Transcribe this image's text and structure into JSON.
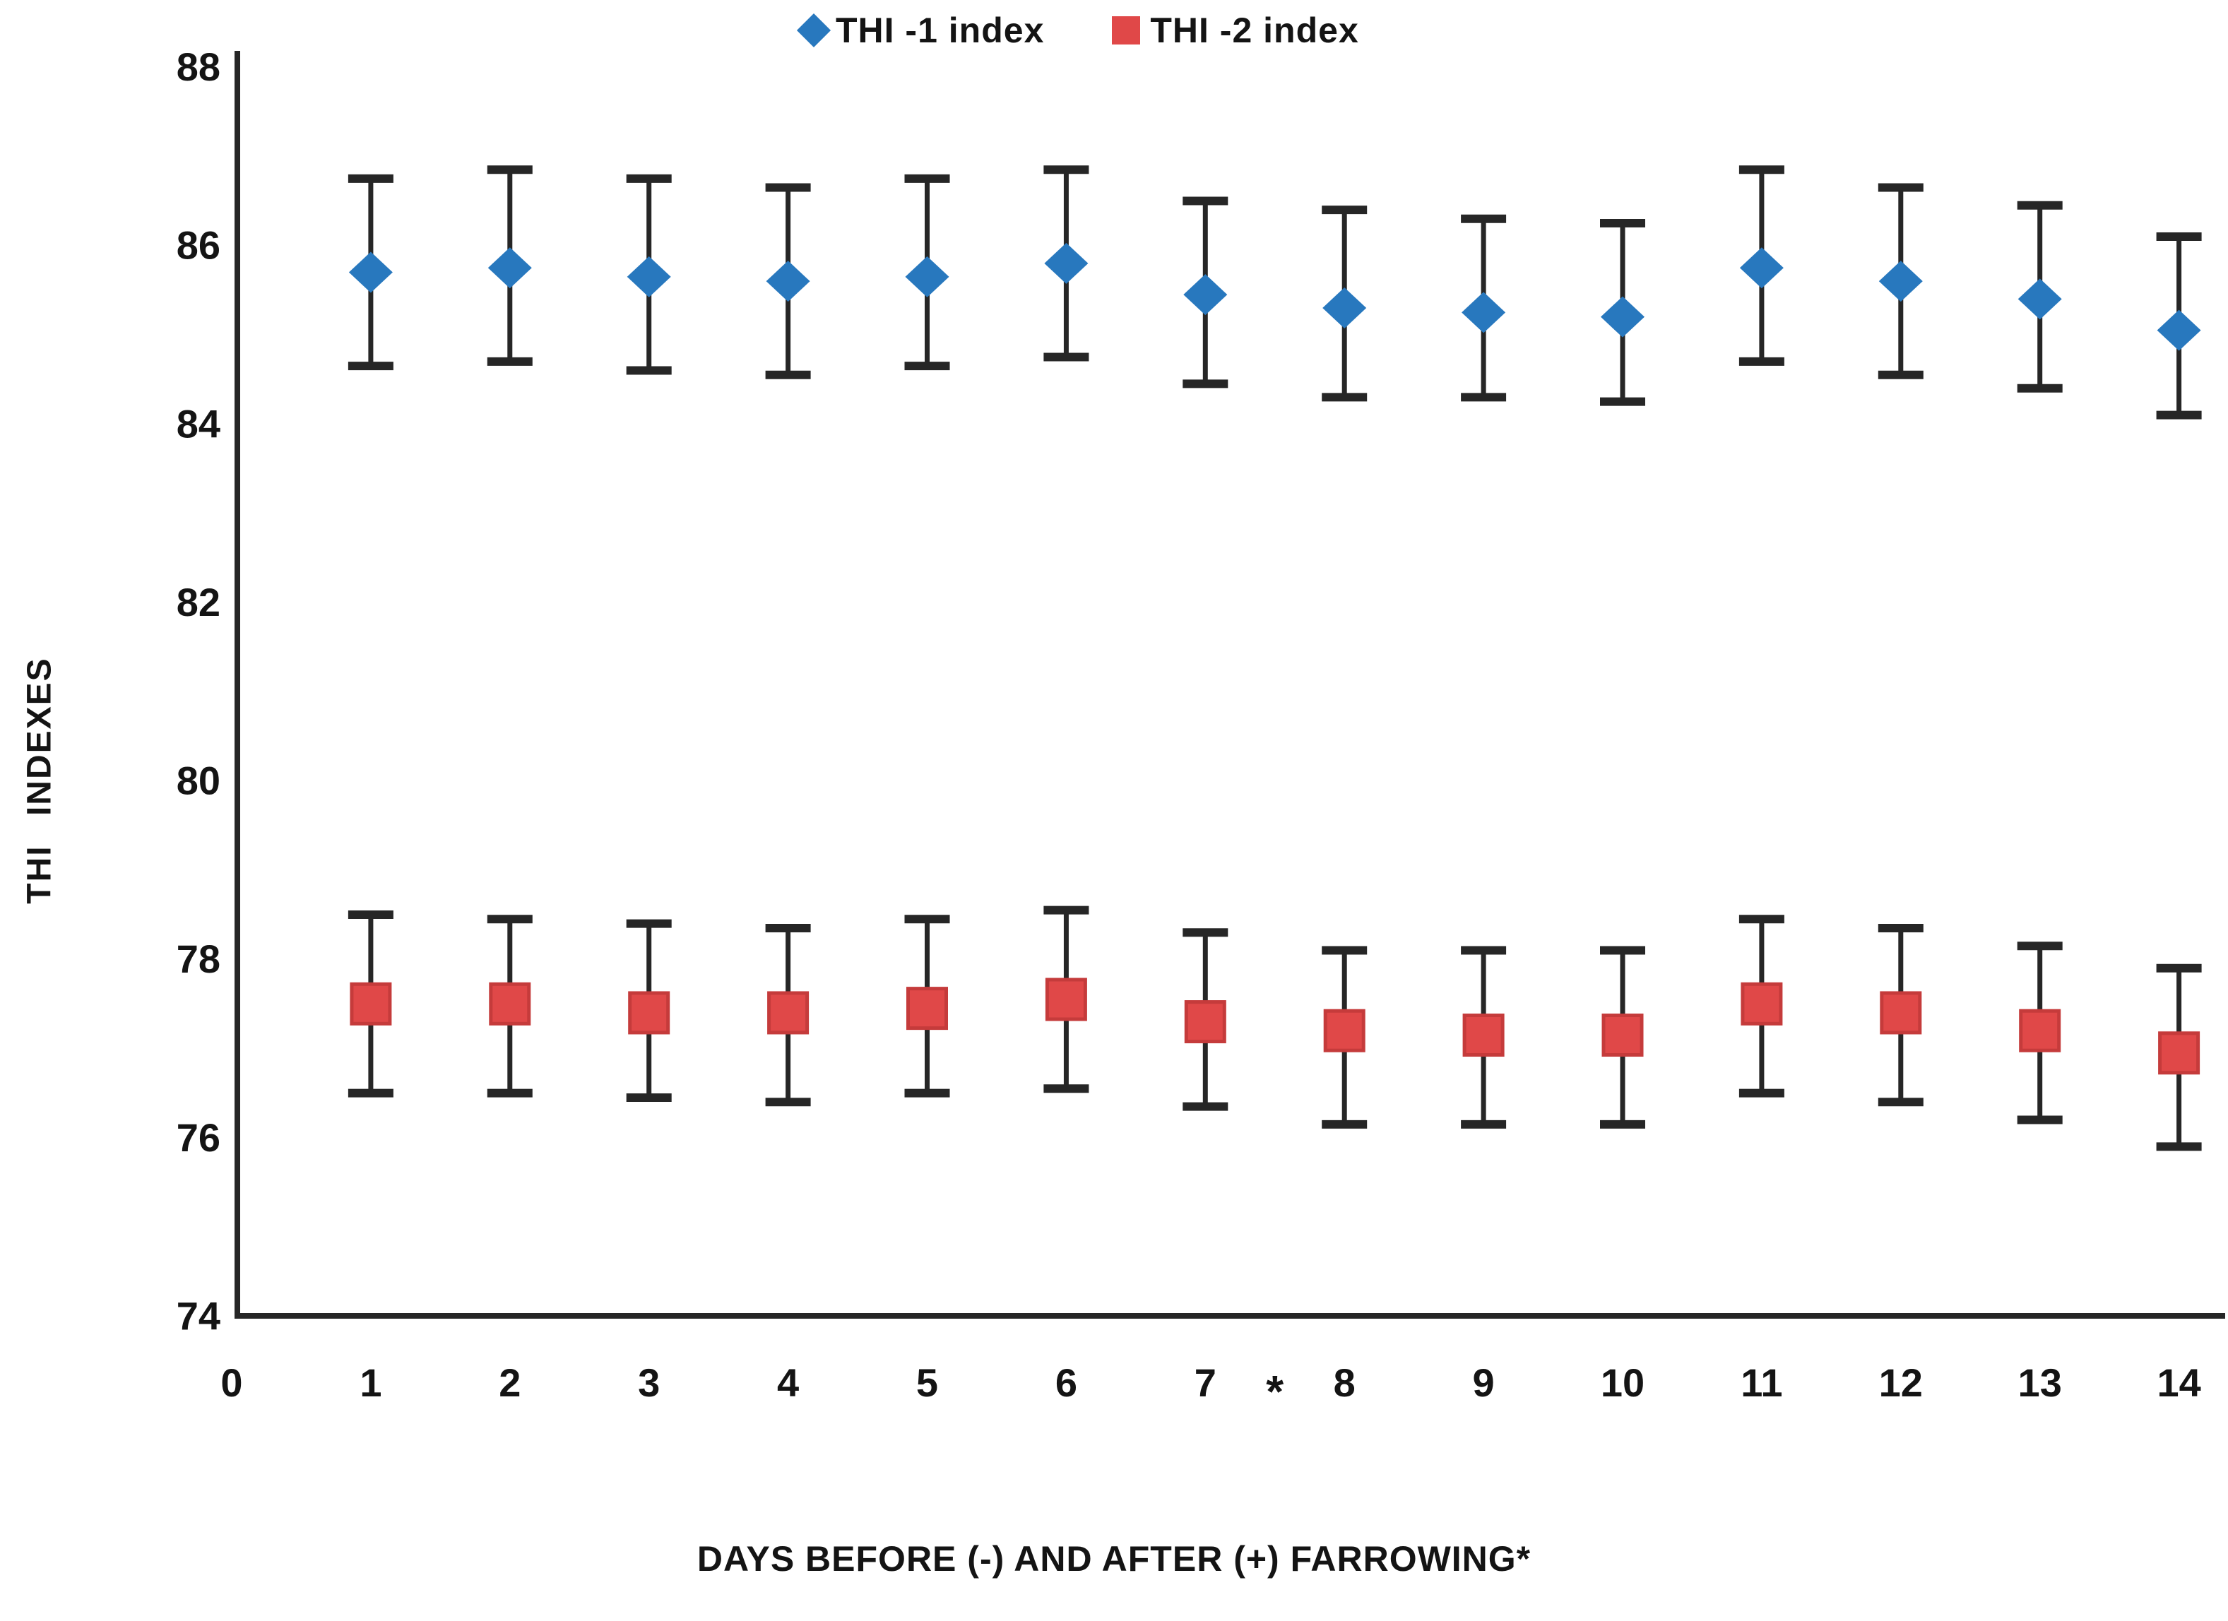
{
  "accent_colors": {
    "series1_blue": "#2878BE",
    "series2_red": "#E04848",
    "series2_red_border": "#C53B3B",
    "axis_and_error_bars": "#262626",
    "text": "#141414",
    "background": "#FFFFFF"
  },
  "legend": {
    "items": [
      {
        "label": "THI -1 index",
        "marker": "diamond",
        "color": "#2878BE"
      },
      {
        "label": "THI -2 index",
        "marker": "square",
        "color": "#E04848"
      }
    ]
  },
  "chart_data": {
    "type": "scatter",
    "title": "",
    "xlabel": "DAYS BEFORE (-) AND AFTER (+) FARROWING*",
    "ylabel": "THI INDEXES",
    "x_categories": [
      "0",
      "1",
      "2",
      "3",
      "4",
      "5",
      "6",
      "7",
      "8",
      "9",
      "10",
      "11",
      "12",
      "13",
      "14"
    ],
    "x_axis_annotation": {
      "text": "*",
      "between_ticks": [
        "7",
        "8"
      ]
    },
    "ylim": [
      74,
      88
    ],
    "yticks": [
      88,
      86,
      84,
      82,
      80,
      78,
      76,
      74
    ],
    "ytick_labels": [
      "88",
      "86",
      "84",
      "82",
      "80",
      "78",
      "76",
      "74"
    ],
    "grid": false,
    "legend_position": "top-center",
    "series": [
      {
        "name": "THI -1 index",
        "marker": "diamond",
        "color": "#2878BE",
        "x": [
          1,
          2,
          3,
          4,
          5,
          6,
          7,
          8,
          9,
          10,
          11,
          12,
          13,
          14
        ],
        "y": [
          85.7,
          85.75,
          85.65,
          85.6,
          85.65,
          85.8,
          85.45,
          85.3,
          85.25,
          85.2,
          85.75,
          85.6,
          85.4,
          85.05
        ],
        "err_low": [
          84.65,
          84.7,
          84.6,
          84.55,
          84.65,
          84.75,
          84.45,
          84.3,
          84.3,
          84.25,
          84.7,
          84.55,
          84.4,
          84.1
        ],
        "err_high": [
          86.75,
          86.85,
          86.75,
          86.65,
          86.75,
          86.85,
          86.5,
          86.4,
          86.3,
          86.25,
          86.85,
          86.65,
          86.45,
          86.1
        ]
      },
      {
        "name": "THI -2 index",
        "marker": "square",
        "color": "#E04848",
        "x": [
          1,
          2,
          3,
          4,
          5,
          6,
          7,
          8,
          9,
          10,
          11,
          12,
          13,
          14
        ],
        "y": [
          77.5,
          77.5,
          77.4,
          77.4,
          77.45,
          77.55,
          77.3,
          77.2,
          77.15,
          77.15,
          77.5,
          77.4,
          77.2,
          76.95
        ],
        "err_low": [
          76.5,
          76.5,
          76.45,
          76.4,
          76.5,
          76.55,
          76.35,
          76.15,
          76.15,
          76.15,
          76.5,
          76.4,
          76.2,
          75.9
        ],
        "err_high": [
          78.5,
          78.45,
          78.4,
          78.35,
          78.45,
          78.55,
          78.3,
          78.1,
          78.1,
          78.1,
          78.45,
          78.35,
          78.15,
          77.9
        ]
      }
    ]
  }
}
